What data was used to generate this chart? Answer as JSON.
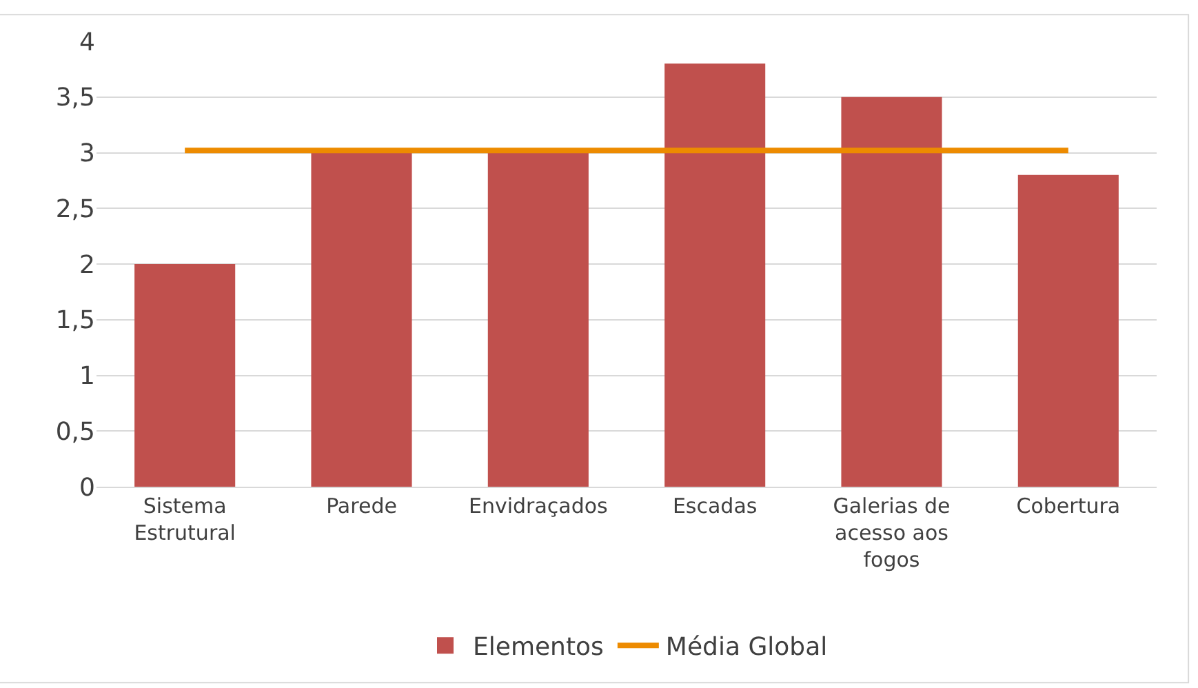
{
  "chart_data": {
    "type": "bar",
    "categories": [
      "Sistema Estrutural",
      "Parede",
      "Envidraçados",
      "Escadas",
      "Galerias de acesso aos fogos",
      "Cobertura"
    ],
    "series": [
      {
        "name": "Elementos",
        "color": "#c0504d",
        "values": [
          2,
          3,
          3,
          3.8,
          3.5,
          2.8
        ]
      },
      {
        "name": "Média Global",
        "type": "line",
        "color": "#ed8b00",
        "values": [
          3.02,
          3.02,
          3.02,
          3.02,
          3.02,
          3.02
        ]
      }
    ],
    "ylim": [
      0,
      4
    ],
    "yticks": [
      0,
      {
        "value": 0.5,
        "label": "0,5"
      },
      1,
      {
        "value": 1.5,
        "label": "1,5"
      },
      2,
      {
        "value": 2.5,
        "label": "2,5"
      },
      3,
      {
        "value": 3.5,
        "label": "3,5"
      },
      4
    ],
    "grid": "y",
    "legend": "bottom",
    "marker": "none"
  }
}
